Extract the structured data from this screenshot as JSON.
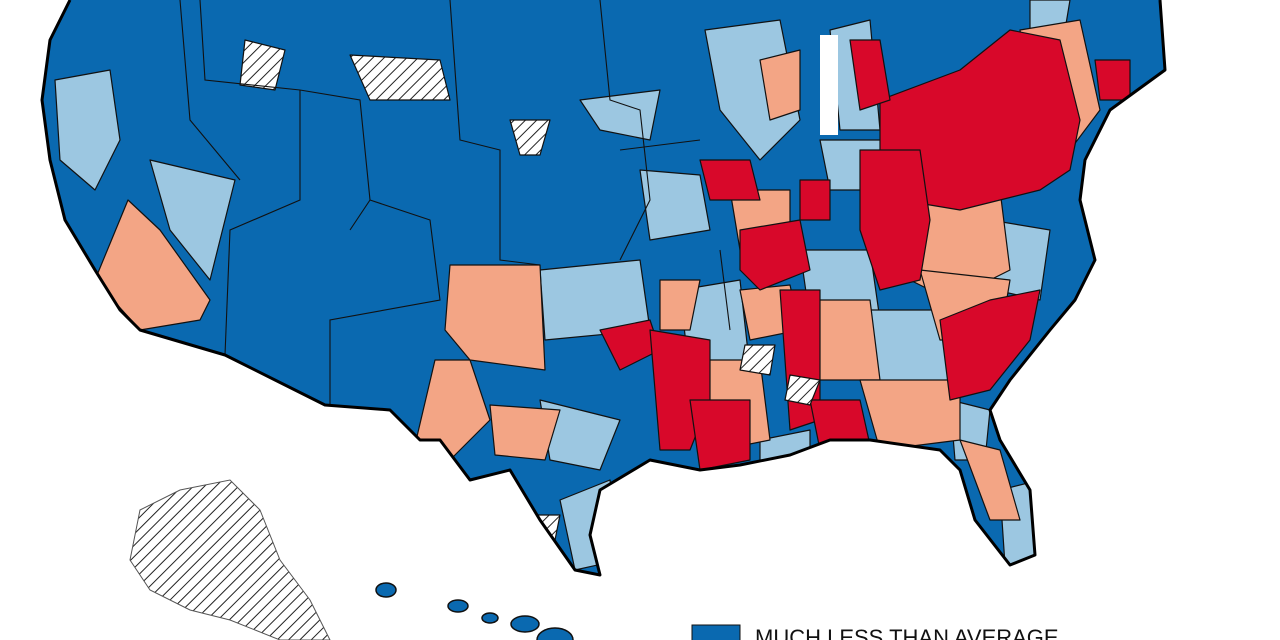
{
  "legend": {
    "items": [
      {
        "label": "MUCH LESS THAN AVERAGE",
        "color": "#0a69b0"
      }
    ]
  }
}
